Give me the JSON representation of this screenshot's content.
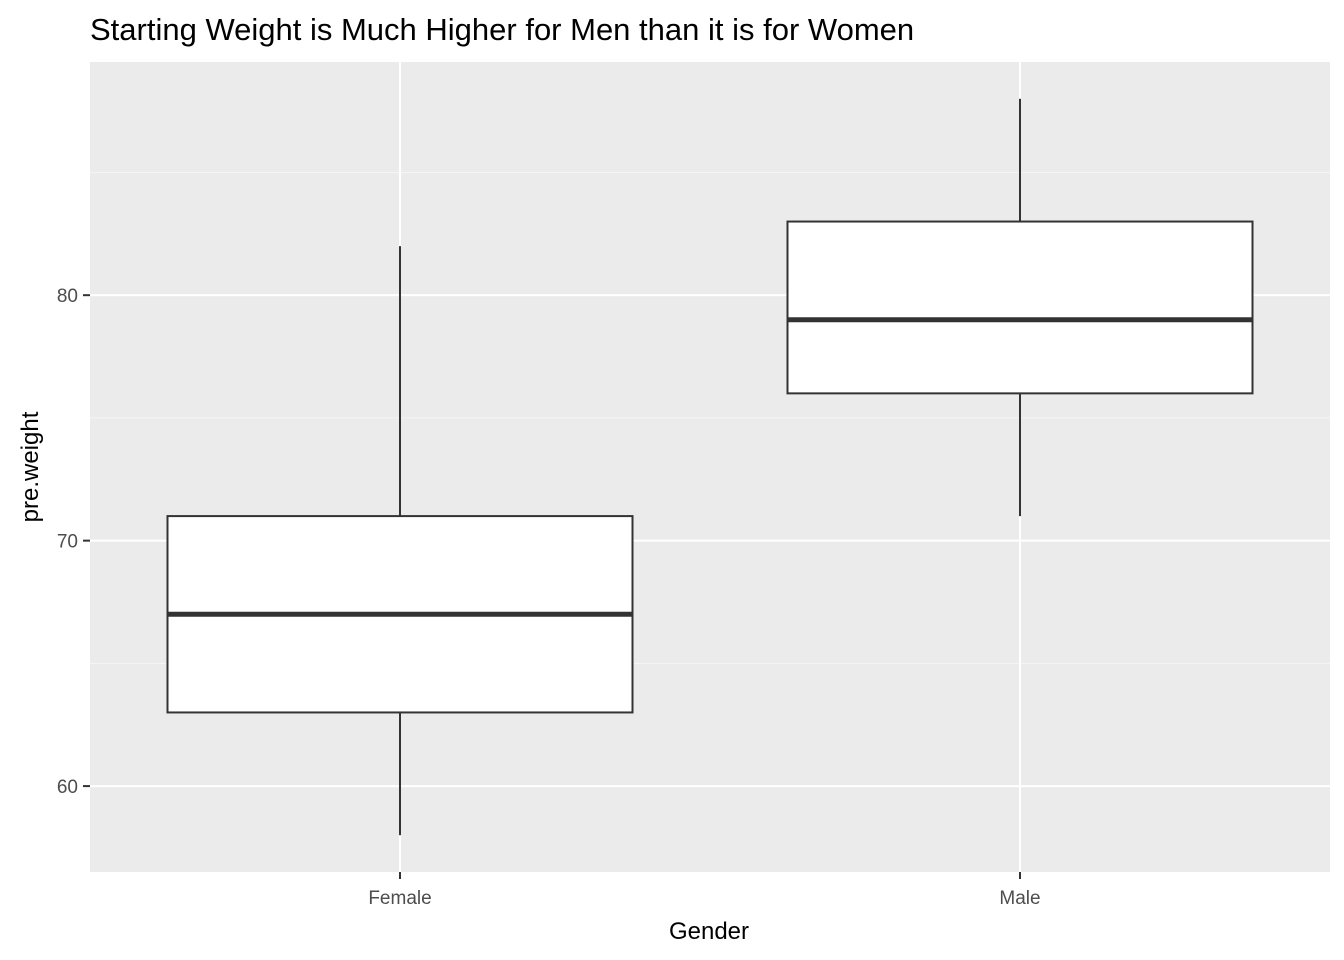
{
  "chart_data": {
    "type": "box",
    "title": "Starting Weight is Much Higher for Men than it is for Women",
    "xlabel": "Gender",
    "ylabel": "pre.weight",
    "categories": [
      "Female",
      "Male"
    ],
    "boxes": [
      {
        "category": "Female",
        "whisker_low": 58,
        "q1": 63,
        "median": 67,
        "q3": 71,
        "whisker_high": 82
      },
      {
        "category": "Male",
        "whisker_low": 71,
        "q1": 76,
        "median": 79,
        "q3": 83,
        "whisker_high": 88
      }
    ],
    "ylim": [
      56.5,
      89.5
    ],
    "yticks": [
      60,
      70,
      80
    ],
    "ytick_labels": [
      "60",
      "70",
      "80"
    ],
    "y_minor_ticks": [
      65,
      75,
      85
    ],
    "grid": true,
    "legend": "none",
    "colors": {
      "panel_background": "#EBEBEB",
      "grid_major": "#FFFFFF",
      "grid_minor": "#F5F5F5",
      "box_fill": "#FFFFFF",
      "box_line": "#333333",
      "tick_text": "#4D4D4D"
    }
  }
}
